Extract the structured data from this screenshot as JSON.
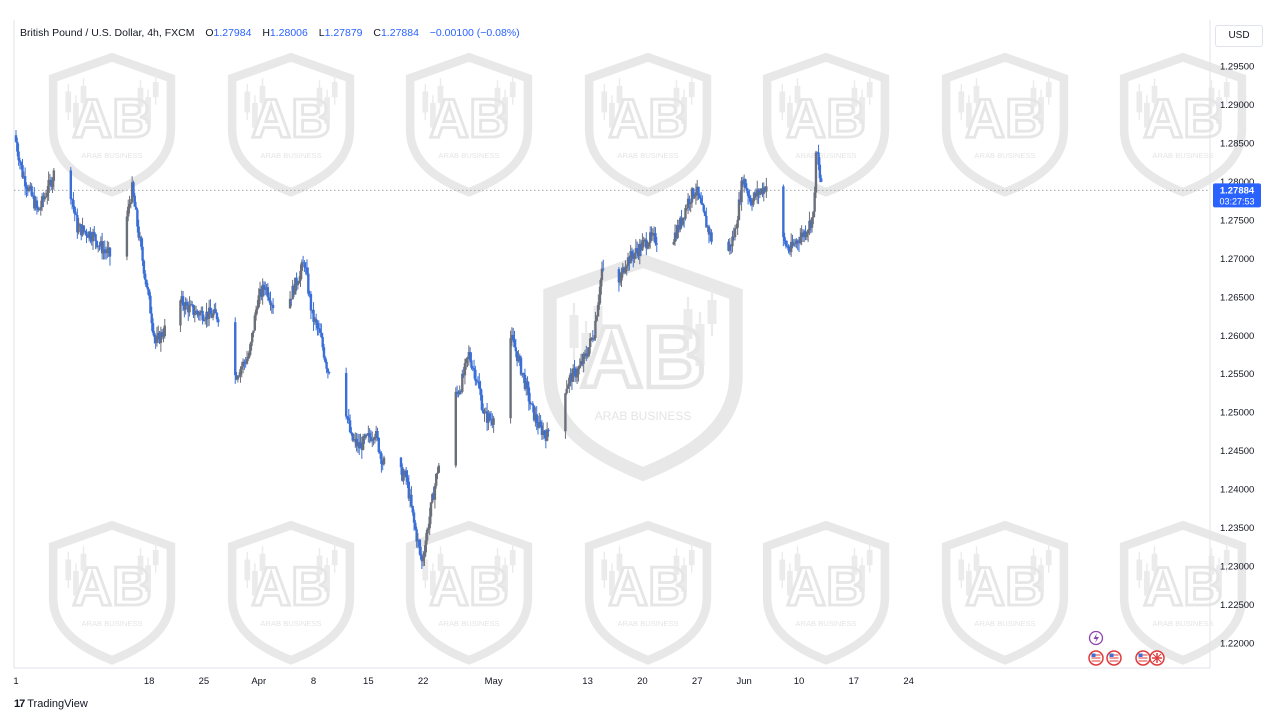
{
  "legend": {
    "symbol": "British Pound / U.S. Dollar, 4h, FXCM",
    "open_label": "O",
    "open": "1.27984",
    "high_label": "H",
    "high": "1.28006",
    "low_label": "L",
    "low": "1.27879",
    "close_label": "C",
    "close": "1.27884",
    "change": "−0.00100 (−0.08%)"
  },
  "currency_button": "USD",
  "price_tag": {
    "price": "1.27884",
    "countdown": "03:27:53"
  },
  "watermark_text": "ARAB BUSINESS",
  "branding": "TradingView",
  "colors": {
    "up": "#6b6f7a",
    "down": "#3a6fd8",
    "price_tag": "#2962ff",
    "grid_border": "#e0e3eb",
    "event_purple": "#8e44ad",
    "event_red": "#e03a3a"
  },
  "chart_data": {
    "type": "candlestick",
    "title": "British Pound / U.S. Dollar, 4h, FXCM",
    "ylim": [
      1.217,
      1.2995
    ],
    "y_ticks": [
      "1.29500",
      "1.29000",
      "1.28500",
      "1.28000",
      "1.27500",
      "1.27000",
      "1.26500",
      "1.26000",
      "1.25500",
      "1.25000",
      "1.24500",
      "1.24000",
      "1.23500",
      "1.23000",
      "1.22500",
      "1.22000"
    ],
    "x_tick_labels": [
      "1",
      "18",
      "25",
      "Apr",
      "8",
      "15",
      "22",
      "May",
      "13",
      "20",
      "27",
      "Jun",
      "10",
      "17",
      "24"
    ],
    "x_tick_days": [
      0,
      17,
      24,
      31,
      38,
      45,
      52,
      61,
      73,
      80,
      87,
      93,
      100,
      107,
      114
    ],
    "last_price_line": 1.27884,
    "anchors": [
      [
        0,
        1.286
      ],
      [
        1,
        1.281
      ],
      [
        3,
        1.276
      ],
      [
        5,
        1.281
      ],
      [
        7,
        1.2795
      ],
      [
        8,
        1.274
      ],
      [
        10,
        1.273
      ],
      [
        11,
        1.2715
      ],
      [
        13,
        1.2695
      ],
      [
        14,
        1.2735
      ],
      [
        15,
        1.279
      ],
      [
        16,
        1.272
      ],
      [
        17,
        1.2655
      ],
      [
        18,
        1.259
      ],
      [
        20,
        1.262
      ],
      [
        21,
        1.2645
      ],
      [
        23,
        1.263
      ],
      [
        26,
        1.2625
      ],
      [
        27,
        1.2565
      ],
      [
        28,
        1.2545
      ],
      [
        30,
        1.2575
      ],
      [
        31,
        1.2645
      ],
      [
        32,
        1.2665
      ],
      [
        34,
        1.2615
      ],
      [
        35,
        1.2645
      ],
      [
        37,
        1.2695
      ],
      [
        38,
        1.2625
      ],
      [
        39,
        1.26
      ],
      [
        40,
        1.2555
      ],
      [
        41,
        1.2565
      ],
      [
        42,
        1.252
      ],
      [
        43,
        1.2465
      ],
      [
        44,
        1.2455
      ],
      [
        46,
        1.2475
      ],
      [
        47,
        1.2435
      ],
      [
        48,
        1.243
      ],
      [
        50,
        1.2415
      ],
      [
        51,
        1.2355
      ],
      [
        52,
        1.2305
      ],
      [
        53,
        1.2365
      ],
      [
        54,
        1.2425
      ],
      [
        55,
        1.246
      ],
      [
        56,
        1.2515
      ],
      [
        57,
        1.2535
      ],
      [
        58,
        1.2575
      ],
      [
        59,
        1.2545
      ],
      [
        60,
        1.2495
      ],
      [
        61,
        1.249
      ],
      [
        62,
        1.2555
      ],
      [
        63,
        1.2605
      ],
      [
        64,
        1.258
      ],
      [
        65,
        1.2545
      ],
      [
        66,
        1.2505
      ],
      [
        67,
        1.248
      ],
      [
        68,
        1.247
      ],
      [
        69,
        1.2505
      ],
      [
        70,
        1.2525
      ],
      [
        71,
        1.2545
      ],
      [
        72,
        1.2555
      ],
      [
        73,
        1.2575
      ],
      [
        74,
        1.2605
      ],
      [
        75,
        1.2685
      ],
      [
        76,
        1.2655
      ],
      [
        77,
        1.266
      ],
      [
        78,
        1.2695
      ],
      [
        79,
        1.2705
      ],
      [
        80,
        1.2715
      ],
      [
        81,
        1.2725
      ],
      [
        82,
        1.2725
      ],
      [
        83,
        1.2705
      ],
      [
        84,
        1.2725
      ],
      [
        85,
        1.2745
      ],
      [
        86,
        1.2775
      ],
      [
        87,
        1.279
      ],
      [
        88,
        1.2755
      ],
      [
        89,
        1.2725
      ],
      [
        90,
        1.2695
      ],
      [
        91,
        1.2705
      ],
      [
        92,
        1.2735
      ],
      [
        93,
        1.2805
      ],
      [
        94,
        1.2775
      ],
      [
        95,
        1.2785
      ],
      [
        96,
        1.2795
      ],
      [
        97,
        1.2795
      ],
      [
        98,
        1.2725
      ],
      [
        99,
        1.271
      ],
      [
        100,
        1.2725
      ],
      [
        101,
        1.2735
      ],
      [
        102,
        1.2755
      ],
      [
        102.4,
        1.2845
      ],
      [
        102.8,
        1.2805
      ],
      [
        103.5,
        1.2788
      ]
    ]
  }
}
